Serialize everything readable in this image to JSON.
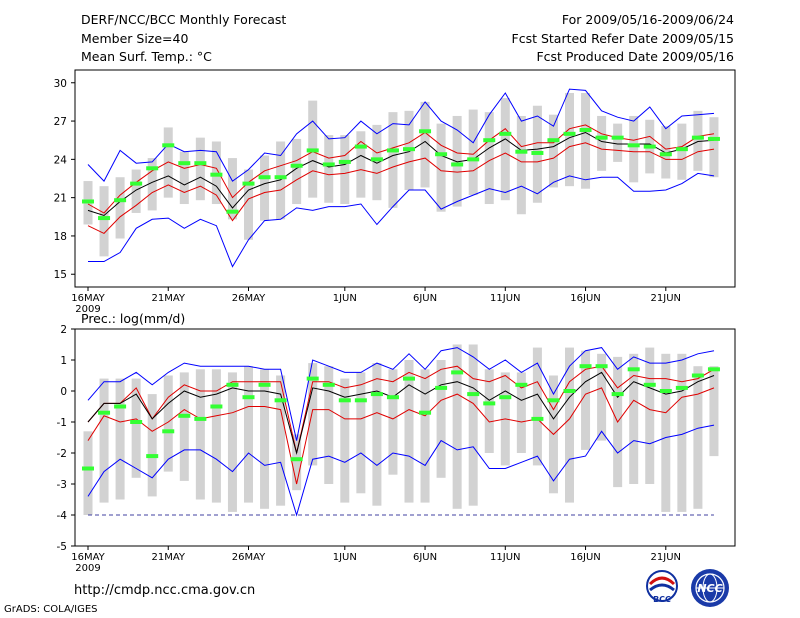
{
  "header": {
    "title": "DERF/NCC/BCC Monthly Forecast",
    "member_size": "Member Size=40",
    "variable": "Mean Surf. Temp.: °C",
    "period": "For 2009/05/16-2009/06/24",
    "refer_date": "Fcst Started Refer Date 2009/05/15",
    "produced_date": "Fcst Produced Date 2009/05/16"
  },
  "footer": {
    "url": "http://cmdp.ncc.cma.gov.cn",
    "credit": "GrADS: COLA/IGES",
    "logo_bcc": "BCC",
    "logo_ncc": "NCC"
  },
  "colors": {
    "band": "#d2d2d2",
    "spread": "#0000ff",
    "quartile": "#e00000",
    "mean": "#000000",
    "median": "#33ff33",
    "floor": "#4040a0"
  },
  "chart_data": [
    {
      "type": "line",
      "title": "Mean Surf. Temp.: °C",
      "xlabel": "",
      "ylabel": "",
      "x": [
        "2009-05-16",
        "2009-05-17",
        "2009-05-18",
        "2009-05-19",
        "2009-05-20",
        "2009-05-21",
        "2009-05-22",
        "2009-05-23",
        "2009-05-24",
        "2009-05-25",
        "2009-05-26",
        "2009-05-27",
        "2009-05-28",
        "2009-05-29",
        "2009-05-30",
        "2009-05-31",
        "2009-06-01",
        "2009-06-02",
        "2009-06-03",
        "2009-06-04",
        "2009-06-05",
        "2009-06-06",
        "2009-06-07",
        "2009-06-08",
        "2009-06-09",
        "2009-06-10",
        "2009-06-11",
        "2009-06-12",
        "2009-06-13",
        "2009-06-14",
        "2009-06-15",
        "2009-06-16",
        "2009-06-17",
        "2009-06-18",
        "2009-06-19",
        "2009-06-20",
        "2009-06-21",
        "2009-06-22",
        "2009-06-23",
        "2009-06-24"
      ],
      "x_ticks": [
        "16MAY",
        "21MAY",
        "26MAY",
        "1JUN",
        "6JUN",
        "11JUN",
        "16JUN",
        "21JUN"
      ],
      "x_ticks_index": [
        0,
        5,
        10,
        16,
        21,
        26,
        31,
        36
      ],
      "x_year_label": "2009",
      "ylim": [
        14,
        31
      ],
      "yticks": [
        15,
        18,
        21,
        24,
        27,
        30
      ],
      "grid": true,
      "band_low": [
        18.9,
        16.4,
        17.8,
        19.8,
        20.0,
        21.0,
        20.5,
        20.8,
        20.5,
        19.3,
        17.7,
        19.2,
        19.3,
        20.5,
        21.0,
        20.6,
        20.5,
        21.0,
        20.8,
        20.2,
        21.6,
        21.8,
        19.9,
        20.3,
        21.2,
        20.5,
        20.8,
        19.7,
        20.6,
        21.8,
        21.9,
        21.7,
        23.1,
        23.8,
        22.2,
        22.9,
        22.5,
        22.4,
        23.1,
        22.6
      ],
      "band_high": [
        22.3,
        21.9,
        22.6,
        23.2,
        24.1,
        26.5,
        24.6,
        25.7,
        25.4,
        24.1,
        23.2,
        24.3,
        25.4,
        25.6,
        28.6,
        25.9,
        25.9,
        26.2,
        26.7,
        27.7,
        27.8,
        28.5,
        26.8,
        27.4,
        27.9,
        27.7,
        28.8,
        27.4,
        28.2,
        27.5,
        29.2,
        29.2,
        27.4,
        26.8,
        27.4,
        27.1,
        26.6,
        26.8,
        27.8,
        27.3
      ],
      "series": [
        {
          "name": "max",
          "role": "spread",
          "values": [
            23.6,
            22.3,
            24.7,
            23.7,
            23.8,
            25.2,
            24.6,
            24.7,
            24.6,
            22.3,
            23.2,
            24.5,
            24.3,
            26.0,
            27.0,
            25.6,
            25.7,
            27.0,
            26.0,
            26.8,
            26.7,
            28.5,
            27.0,
            26.3,
            25.3,
            27.5,
            29.2,
            27.0,
            27.4,
            26.6,
            29.5,
            29.4,
            27.8,
            27.3,
            27.0,
            28.1,
            26.4,
            27.4,
            27.5,
            27.6
          ]
        },
        {
          "name": "upper quartile",
          "role": "quartile",
          "values": [
            20.5,
            19.8,
            21.2,
            22.2,
            23.1,
            23.8,
            23.3,
            23.6,
            23.3,
            21.0,
            22.2,
            23.1,
            23.5,
            23.9,
            24.6,
            24.1,
            24.3,
            25.4,
            24.5,
            24.9,
            25.3,
            26.1,
            25.1,
            24.5,
            24.4,
            25.5,
            26.4,
            25.0,
            25.3,
            25.3,
            26.4,
            26.7,
            26.0,
            25.7,
            25.5,
            25.8,
            24.8,
            25.0,
            25.8,
            26.0
          ]
        },
        {
          "name": "mean",
          "role": "mean",
          "values": [
            20.0,
            19.6,
            20.7,
            21.6,
            22.2,
            22.7,
            22.0,
            22.6,
            21.9,
            20.2,
            21.6,
            22.1,
            22.4,
            23.3,
            23.9,
            23.4,
            23.6,
            24.3,
            23.7,
            24.3,
            24.6,
            25.4,
            24.3,
            23.8,
            24.0,
            24.9,
            25.6,
            24.7,
            24.8,
            25.0,
            25.7,
            26.1,
            25.4,
            25.2,
            25.2,
            25.2,
            24.5,
            24.8,
            25.4,
            25.5
          ]
        },
        {
          "name": "lower quartile",
          "role": "quartile",
          "values": [
            18.8,
            18.2,
            19.5,
            20.4,
            21.4,
            22.0,
            21.4,
            21.9,
            21.2,
            19.2,
            20.9,
            21.4,
            21.6,
            22.4,
            23.1,
            22.8,
            22.9,
            23.2,
            22.9,
            23.4,
            23.8,
            24.1,
            23.1,
            23.0,
            23.1,
            23.9,
            24.5,
            23.8,
            23.8,
            24.1,
            25.0,
            25.3,
            24.8,
            24.7,
            24.6,
            24.6,
            24.0,
            24.0,
            24.6,
            24.8
          ]
        },
        {
          "name": "min",
          "role": "spread",
          "values": [
            16.0,
            16.0,
            16.7,
            18.6,
            19.3,
            19.4,
            18.6,
            19.3,
            18.8,
            15.6,
            17.7,
            19.2,
            19.3,
            20.2,
            20.0,
            20.3,
            20.3,
            20.5,
            18.9,
            20.3,
            21.6,
            21.6,
            20.1,
            20.7,
            21.2,
            21.7,
            21.4,
            21.9,
            21.3,
            22.2,
            22.7,
            22.4,
            22.6,
            22.6,
            21.5,
            21.5,
            21.6,
            22.1,
            22.9,
            22.7
          ]
        },
        {
          "name": "median",
          "role": "median",
          "values": [
            20.7,
            19.4,
            20.8,
            22.1,
            23.3,
            25.1,
            23.7,
            23.7,
            22.8,
            19.9,
            22.1,
            22.6,
            22.6,
            23.5,
            24.7,
            23.6,
            23.8,
            25.0,
            24.0,
            24.7,
            24.8,
            26.2,
            24.4,
            23.6,
            24.0,
            25.5,
            26.0,
            24.6,
            24.5,
            25.5,
            26.0,
            26.3,
            25.7,
            25.7,
            25.1,
            25.0,
            24.4,
            24.8,
            25.7,
            25.6
          ]
        }
      ]
    },
    {
      "type": "line",
      "title": "Prec.: log(mm/d)",
      "xlabel": "",
      "ylabel": "",
      "x": [
        "2009-05-16",
        "2009-05-17",
        "2009-05-18",
        "2009-05-19",
        "2009-05-20",
        "2009-05-21",
        "2009-05-22",
        "2009-05-23",
        "2009-05-24",
        "2009-05-25",
        "2009-05-26",
        "2009-05-27",
        "2009-05-28",
        "2009-05-29",
        "2009-05-30",
        "2009-05-31",
        "2009-06-01",
        "2009-06-02",
        "2009-06-03",
        "2009-06-04",
        "2009-06-05",
        "2009-06-06",
        "2009-06-07",
        "2009-06-08",
        "2009-06-09",
        "2009-06-10",
        "2009-06-11",
        "2009-06-12",
        "2009-06-13",
        "2009-06-14",
        "2009-06-15",
        "2009-06-16",
        "2009-06-17",
        "2009-06-18",
        "2009-06-19",
        "2009-06-20",
        "2009-06-21",
        "2009-06-22",
        "2009-06-23",
        "2009-06-24"
      ],
      "x_ticks": [
        "16MAY",
        "21MAY",
        "26MAY",
        "1JUN",
        "6JUN",
        "11JUN",
        "16JUN",
        "21JUN"
      ],
      "x_ticks_index": [
        0,
        5,
        10,
        16,
        21,
        26,
        31,
        36
      ],
      "x_year_label": "2009",
      "ylim": [
        -5,
        2
      ],
      "yticks": [
        -5,
        -4,
        -3,
        -2,
        -1,
        0,
        1,
        2
      ],
      "floor_value": -4,
      "grid": true,
      "band_low": [
        -4.0,
        -3.6,
        -3.5,
        -2.8,
        -3.4,
        -2.6,
        -2.9,
        -3.5,
        -3.6,
        -3.9,
        -3.6,
        -3.8,
        -3.7,
        -3.2,
        -2.4,
        -3.0,
        -3.6,
        -3.3,
        -3.7,
        -2.7,
        -3.6,
        -3.6,
        -2.8,
        -3.8,
        -3.7,
        -2.0,
        -2.4,
        -2.0,
        -2.4,
        -3.3,
        -3.6,
        -1.9,
        -1.6,
        -3.1,
        -3.0,
        -3.0,
        -3.9,
        -3.9,
        -3.8,
        -2.1
      ],
      "band_high": [
        -1.3,
        0.4,
        0.4,
        0.4,
        -0.1,
        0.5,
        0.6,
        0.7,
        0.7,
        0.6,
        0.8,
        0.7,
        0.5,
        -1.4,
        0.9,
        0.8,
        0.4,
        0.6,
        0.9,
        0.7,
        1.0,
        0.7,
        1.0,
        1.5,
        1.5,
        0.7,
        0.6,
        0.6,
        1.4,
        0.5,
        1.4,
        1.3,
        1.2,
        1.1,
        1.2,
        1.4,
        1.2,
        1.2,
        0.8,
        0.8
      ],
      "series": [
        {
          "name": "max",
          "role": "spread",
          "values": [
            -0.3,
            0.3,
            0.3,
            0.6,
            0.2,
            0.6,
            0.9,
            0.8,
            0.8,
            0.8,
            0.8,
            0.7,
            0.7,
            -1.6,
            1.0,
            0.8,
            0.6,
            0.6,
            0.9,
            0.7,
            1.2,
            0.7,
            1.3,
            1.4,
            1.1,
            0.7,
            1.0,
            0.6,
            0.9,
            -0.1,
            0.8,
            1.3,
            1.4,
            0.7,
            1.1,
            0.9,
            0.9,
            1.0,
            1.2,
            1.3
          ]
        },
        {
          "name": "upper quartile",
          "role": "quartile",
          "values": [
            -1.0,
            -0.4,
            -0.4,
            0.1,
            -0.9,
            -0.2,
            0.2,
            0.0,
            0.0,
            0.3,
            0.3,
            0.3,
            0.3,
            -2.0,
            0.3,
            0.3,
            0.1,
            0.2,
            0.4,
            0.3,
            0.6,
            0.4,
            0.7,
            0.8,
            0.4,
            0.3,
            0.5,
            0.1,
            0.3,
            -0.6,
            0.3,
            0.7,
            0.8,
            0.1,
            0.5,
            0.4,
            0.4,
            0.3,
            0.4,
            0.7
          ]
        },
        {
          "name": "mean",
          "role": "mean",
          "values": [
            -1.0,
            -0.4,
            -0.4,
            -0.1,
            -0.9,
            -0.4,
            0.0,
            -0.2,
            -0.1,
            0.1,
            0.0,
            0.0,
            -0.1,
            -2.0,
            0.1,
            0.0,
            -0.2,
            -0.1,
            0.0,
            -0.2,
            0.2,
            -0.1,
            0.2,
            0.3,
            0.1,
            -0.3,
            0.0,
            -0.3,
            -0.1,
            -0.9,
            -0.2,
            0.3,
            0.6,
            -0.2,
            0.3,
            0.1,
            -0.1,
            0.0,
            0.3,
            0.5
          ]
        },
        {
          "name": "lower quartile",
          "role": "quartile",
          "values": [
            -1.6,
            -0.8,
            -1.0,
            -0.9,
            -1.3,
            -1.0,
            -0.6,
            -0.9,
            -0.8,
            -0.7,
            -0.5,
            -0.5,
            -0.6,
            -3.0,
            -0.6,
            -0.6,
            -0.9,
            -0.9,
            -0.7,
            -0.9,
            -0.6,
            -0.8,
            -0.3,
            -0.1,
            -0.4,
            -1.0,
            -0.9,
            -1.0,
            -0.9,
            -1.4,
            -0.9,
            -0.1,
            0.1,
            -1.0,
            -0.3,
            -0.6,
            -0.7,
            -0.2,
            -0.1,
            0.1
          ]
        },
        {
          "name": "min",
          "role": "spread",
          "values": [
            -3.4,
            -2.6,
            -2.2,
            -2.5,
            -2.8,
            -2.2,
            -1.9,
            -1.9,
            -2.2,
            -2.6,
            -2.0,
            -2.4,
            -2.3,
            -4.0,
            -2.2,
            -2.1,
            -2.3,
            -2.0,
            -2.4,
            -2.0,
            -2.1,
            -2.4,
            -1.6,
            -1.9,
            -1.8,
            -2.5,
            -2.5,
            -2.3,
            -2.1,
            -2.9,
            -2.2,
            -2.1,
            -1.3,
            -2.0,
            -1.6,
            -1.7,
            -1.5,
            -1.4,
            -1.2,
            -1.1
          ]
        },
        {
          "name": "median",
          "role": "median",
          "values": [
            -2.5,
            -0.7,
            -0.5,
            -1.0,
            -2.1,
            -1.3,
            -0.8,
            -0.9,
            -0.5,
            0.2,
            -0.2,
            0.2,
            -0.3,
            -2.2,
            0.4,
            0.2,
            -0.3,
            -0.3,
            -0.1,
            -0.2,
            0.4,
            -0.7,
            0.1,
            0.6,
            -0.1,
            -0.4,
            -0.2,
            0.2,
            -0.9,
            -0.3,
            0.0,
            0.8,
            0.8,
            -0.1,
            0.7,
            0.2,
            0.0,
            0.1,
            0.5,
            0.7
          ]
        }
      ]
    }
  ]
}
